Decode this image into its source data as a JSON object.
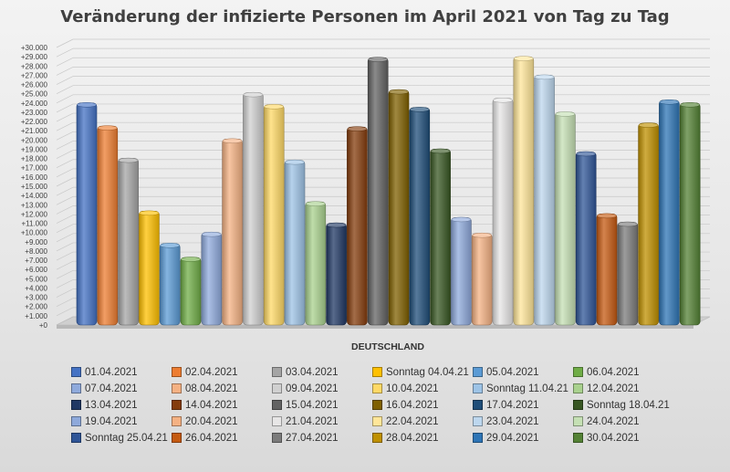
{
  "chart_data": {
    "type": "bar",
    "title": "Veränderung der infizierte Personen im April 2021 von Tag zu Tag",
    "xlabel": "DEUTSCHLAND",
    "ylabel": "",
    "ylim": [
      0,
      30000
    ],
    "y_ticks": [
      "+0",
      "+1.000",
      "+2.000",
      "+3.000",
      "+4.000",
      "+5.000",
      "+6.000",
      "+7.000",
      "+8.000",
      "+9.000",
      "+10.000",
      "+11.000",
      "+12.000",
      "+13.000",
      "+14.000",
      "+15.000",
      "+16.000",
      "+17.000",
      "+18.000",
      "+19.000",
      "+20.000",
      "+21.000",
      "+22.000",
      "+23.000",
      "+24.000",
      "+25.000",
      "+26.000",
      "+27.000",
      "+28.000",
      "+29.000",
      "+30.000"
    ],
    "categories": [
      "DEUTSCHLAND"
    ],
    "legend_position": "bottom",
    "grid": true,
    "series": [
      {
        "name": "01.04.2021",
        "value": 24000,
        "color": "#4472c4"
      },
      {
        "name": "02.04.2021",
        "value": 21500,
        "color": "#ed7d31"
      },
      {
        "name": "03.04.2021",
        "value": 18000,
        "color": "#a5a5a5"
      },
      {
        "name": "Sonntag 04.04.21",
        "value": 12300,
        "color": "#ffc000"
      },
      {
        "name": "05.04.2021",
        "value": 8800,
        "color": "#5b9bd5"
      },
      {
        "name": "06.04.2021",
        "value": 7300,
        "color": "#70ad47"
      },
      {
        "name": "07.04.2021",
        "value": 10000,
        "color": "#8faadc"
      },
      {
        "name": "08.04.2021",
        "value": 20100,
        "color": "#f4b183"
      },
      {
        "name": "09.04.2021",
        "value": 25100,
        "color": "#d0d0d0"
      },
      {
        "name": "10.04.2021",
        "value": 23800,
        "color": "#ffd966"
      },
      {
        "name": "Sonntag 11.04.21",
        "value": 17800,
        "color": "#9dc3e6"
      },
      {
        "name": "12.04.2021",
        "value": 13300,
        "color": "#a9d18e"
      },
      {
        "name": "13.04.2021",
        "value": 11000,
        "color": "#203864"
      },
      {
        "name": "14.04.2021",
        "value": 21400,
        "color": "#843c0c"
      },
      {
        "name": "15.04.2021",
        "value": 28900,
        "color": "#636363"
      },
      {
        "name": "16.04.2021",
        "value": 25400,
        "color": "#7f6000"
      },
      {
        "name": "17.04.2021",
        "value": 23500,
        "color": "#1f4e79"
      },
      {
        "name": "Sonntag 18.04.21",
        "value": 19000,
        "color": "#385723"
      },
      {
        "name": "19.04.2021",
        "value": 11600,
        "color": "#8ea9db"
      },
      {
        "name": "20.04.2021",
        "value": 9900,
        "color": "#f4b183"
      },
      {
        "name": "21.04.2021",
        "value": 24500,
        "color": "#e7e6e6"
      },
      {
        "name": "22.04.2021",
        "value": 29000,
        "color": "#ffe699"
      },
      {
        "name": "23.04.2021",
        "value": 27000,
        "color": "#bdd7ee"
      },
      {
        "name": "24.04.2021",
        "value": 23000,
        "color": "#c5e0b4"
      },
      {
        "name": "Sonntag 25.04.21",
        "value": 18700,
        "color": "#2f5597"
      },
      {
        "name": "26.04.2021",
        "value": 12000,
        "color": "#c55a11"
      },
      {
        "name": "27.04.2021",
        "value": 11100,
        "color": "#7b7b7b"
      },
      {
        "name": "28.04.2021",
        "value": 21800,
        "color": "#bf9000"
      },
      {
        "name": "29.04.2021",
        "value": 24300,
        "color": "#2e75b6"
      },
      {
        "name": "30.04.2021",
        "value": 24000,
        "color": "#548235"
      }
    ]
  }
}
